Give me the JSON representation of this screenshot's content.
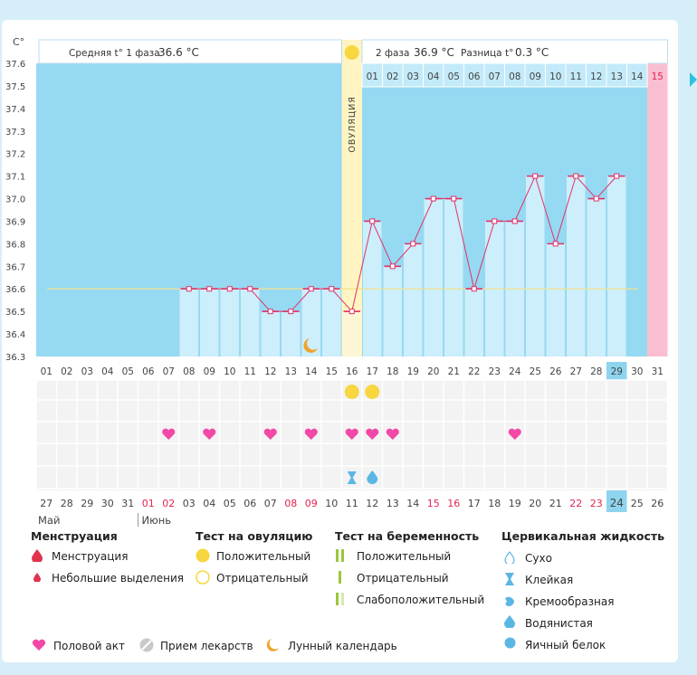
{
  "chart_data": {
    "type": "line",
    "ylabel": "C°",
    "ylim": [
      36.3,
      37.6
    ],
    "yticks": [
      "37.6",
      "37.5",
      "37.4",
      "37.3",
      "37.2",
      "37.1",
      "37.0",
      "36.9",
      "36.8",
      "36.7",
      "36.6",
      "36.5",
      "36.4",
      "36.3"
    ],
    "cycle_days": [
      "01",
      "02",
      "03",
      "04",
      "05",
      "06",
      "07",
      "08",
      "09",
      "10",
      "11",
      "12",
      "13",
      "14",
      "15",
      "16",
      "17",
      "18",
      "19",
      "20",
      "21",
      "22",
      "23",
      "24",
      "25",
      "26",
      "27",
      "28",
      "29",
      "30",
      "31"
    ],
    "temperatures": [
      null,
      null,
      null,
      null,
      null,
      null,
      null,
      36.6,
      36.6,
      36.6,
      36.6,
      36.5,
      36.5,
      36.6,
      36.6,
      36.5,
      36.9,
      36.7,
      36.8,
      37.0,
      37.0,
      36.6,
      36.9,
      36.9,
      37.1,
      36.8,
      37.1,
      37.0,
      37.1,
      null,
      null
    ],
    "coverline": 36.6,
    "phase2_days": [
      "01",
      "02",
      "03",
      "04",
      "05",
      "06",
      "07",
      "08",
      "09",
      "10",
      "11",
      "12",
      "13",
      "14",
      "15"
    ],
    "ovulation_label": "ОВУЛЯЦИЯ",
    "header": {
      "phase1_label": "Средняя t° 1 фаза",
      "phase1_value": "36.6 °C",
      "phase2_label": "2 фаза",
      "phase2_value": "36.9 °C",
      "diff_label": "Разница t°",
      "diff_value": "0.3 °C"
    },
    "highlight_cycle_day": "29",
    "calendar_dates": [
      "27",
      "28",
      "29",
      "30",
      "31",
      "01",
      "02",
      "03",
      "04",
      "05",
      "06",
      "07",
      "08",
      "09",
      "10",
      "11",
      "12",
      "13",
      "14",
      "15",
      "16",
      "17",
      "18",
      "19",
      "20",
      "21",
      "22",
      "23",
      "24",
      "25",
      "26"
    ],
    "calendar_red_dates": [
      "01",
      "02",
      "08",
      "09",
      "15",
      "16",
      "22",
      "23"
    ],
    "highlight_calendar_date": "24",
    "month_labels": [
      "Май",
      "Июнь"
    ],
    "ovulation_test_positive_days": [
      "16",
      "17"
    ],
    "intercourse_days": [
      "07",
      "09",
      "12",
      "14",
      "16",
      "17",
      "18",
      "24"
    ],
    "cervical_fluid": {
      "16": "sticky",
      "17": "watery"
    },
    "moon_day": "14",
    "colors": {
      "phase1_bg": "#96d9f2",
      "bar": "#cdeefb",
      "ovulation": "#fff4c2",
      "period": "#f9bfd0",
      "line": "#e0336a",
      "coverline": "#f1e38c",
      "heart": "#f248a7",
      "test_positive": "#f7d640",
      "calendar_highlight": "#8fd4ee",
      "red_date": "#e52450"
    }
  },
  "legend": {
    "menstruation": {
      "title": "Менструация",
      "items": [
        "Менструация",
        "Небольшие выделения"
      ]
    },
    "ovulation_test": {
      "title": "Тест на овуляцию",
      "items": [
        "Положительный",
        "Отрицательный"
      ]
    },
    "pregnancy_test": {
      "title": "Тест на беременность",
      "items": [
        "Положительный",
        "Отрицательный",
        "Слабоположительный"
      ]
    },
    "cervical_fluid": {
      "title": "Цервикальная жидкость",
      "items": [
        "Сухо",
        "Клейкая",
        "Кремообразная",
        "Водянистая",
        "Яичный белок"
      ]
    },
    "other": [
      "Половой акт",
      "Прием лекарств",
      "Лунный календарь"
    ]
  }
}
